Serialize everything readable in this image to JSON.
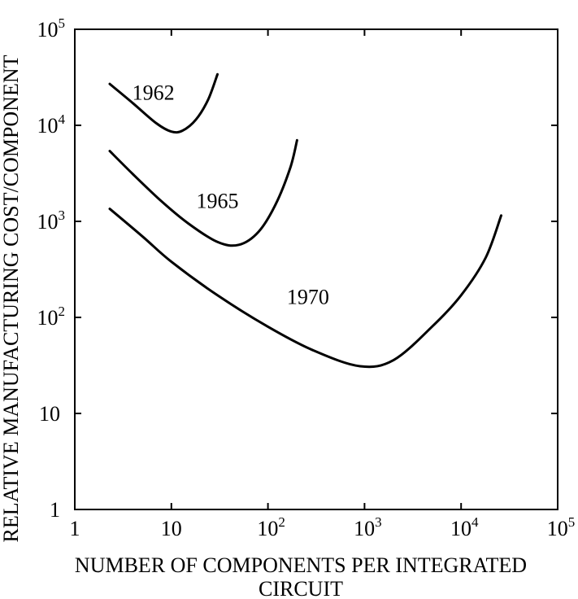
{
  "chart_data": {
    "type": "line",
    "xlabel": "NUMBER OF COMPONENTS PER INTEGRATED CIRCUIT",
    "xlabel_lines": [
      "NUMBER OF COMPONENTS PER INTEGRATED",
      "CIRCUIT"
    ],
    "ylabel": "RELATIVE MANUFACTURING COST/COMPONENT",
    "xscale": "log",
    "yscale": "log",
    "xlim": [
      1,
      100000
    ],
    "ylim": [
      1,
      100000
    ],
    "grid": false,
    "x_ticks": [
      {
        "value": 1,
        "base": "1",
        "exp": ""
      },
      {
        "value": 10,
        "base": "10",
        "exp": ""
      },
      {
        "value": 100,
        "base": "10",
        "exp": "2"
      },
      {
        "value": 1000,
        "base": "10",
        "exp": "3"
      },
      {
        "value": 10000,
        "base": "10",
        "exp": "4"
      },
      {
        "value": 100000,
        "base": "10",
        "exp": "5"
      }
    ],
    "y_ticks": [
      {
        "value": 1,
        "base": "1",
        "exp": ""
      },
      {
        "value": 10,
        "base": "10",
        "exp": ""
      },
      {
        "value": 100,
        "base": "10",
        "exp": "2"
      },
      {
        "value": 1000,
        "base": "10",
        "exp": "3"
      },
      {
        "value": 10000,
        "base": "10",
        "exp": "4"
      },
      {
        "value": 100000,
        "base": "10",
        "exp": "5"
      }
    ],
    "series": [
      {
        "name": "1962",
        "points": [
          [
            2.3,
            27000
          ],
          [
            4,
            17000
          ],
          [
            7,
            10500
          ],
          [
            10,
            8600
          ],
          [
            13,
            8800
          ],
          [
            18,
            11500
          ],
          [
            24,
            18500
          ],
          [
            30,
            34000
          ]
        ],
        "label_at": [
          6.5,
          22000
        ]
      },
      {
        "name": "1965",
        "points": [
          [
            2.3,
            5400
          ],
          [
            4,
            3100
          ],
          [
            8,
            1600
          ],
          [
            15,
            950
          ],
          [
            30,
            610
          ],
          [
            50,
            570
          ],
          [
            80,
            780
          ],
          [
            120,
            1500
          ],
          [
            170,
            3600
          ],
          [
            200,
            7000
          ]
        ],
        "label_at": [
          30,
          1650
        ]
      },
      {
        "name": "1970",
        "points": [
          [
            2.3,
            1350
          ],
          [
            5,
            700
          ],
          [
            10,
            380
          ],
          [
            30,
            170
          ],
          [
            100,
            80
          ],
          [
            300,
            45
          ],
          [
            900,
            31
          ],
          [
            2000,
            36
          ],
          [
            5000,
            80
          ],
          [
            10000,
            170
          ],
          [
            18000,
            420
          ],
          [
            26000,
            1150
          ]
        ],
        "label_at": [
          260,
          165
        ]
      }
    ]
  }
}
